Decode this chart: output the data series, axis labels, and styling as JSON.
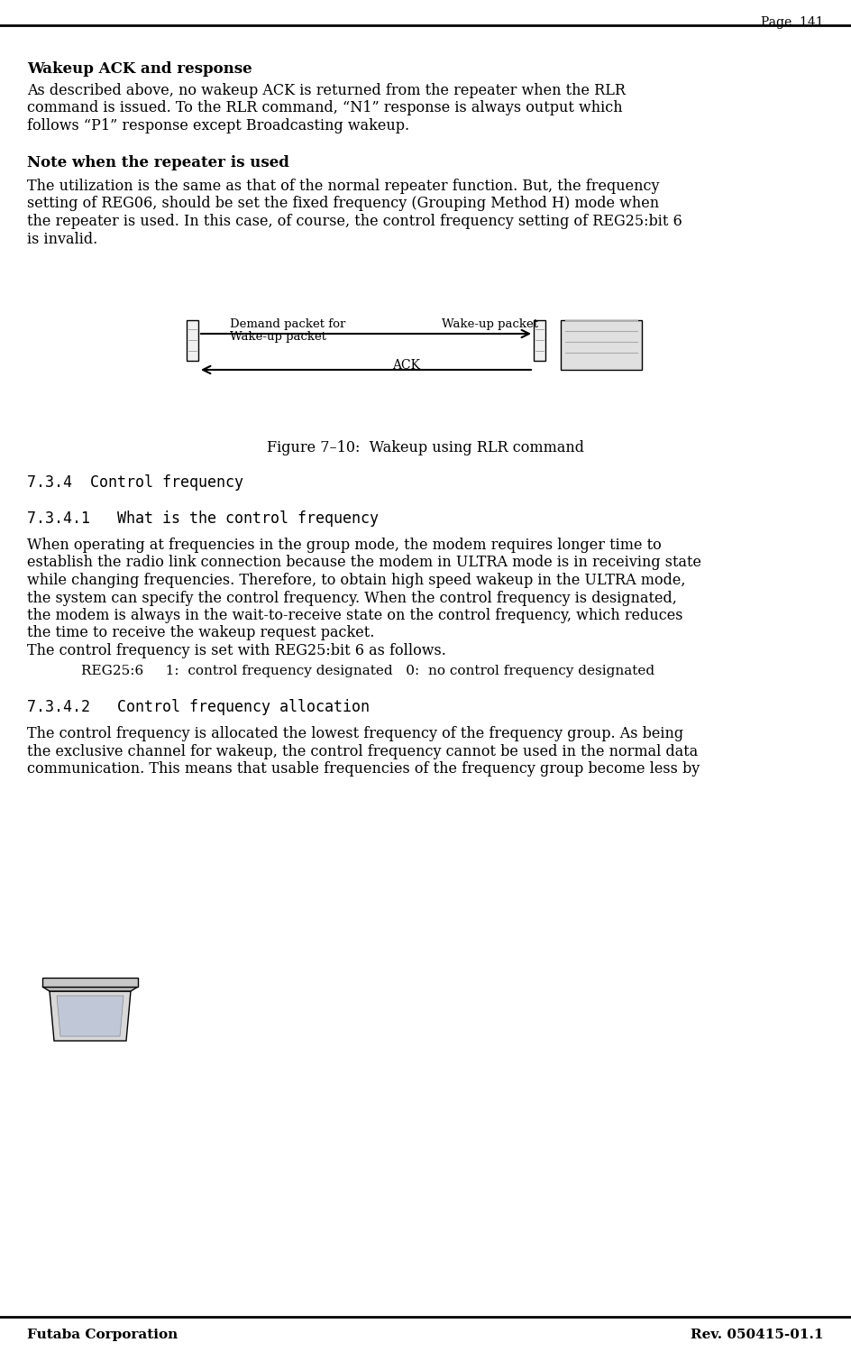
{
  "page_header": "Page  141",
  "footer_left": "Futaba Corporation",
  "footer_right": "Rev. 050415-01.1",
  "section_title": "Wakeup ACK and response",
  "note_title": "Note when the repeater is used",
  "figure_caption": "Figure 7–10:  Wakeup using RLR command",
  "section_7_3_4": "7.3.4  Control frequency",
  "section_7_3_4_1": "7.3.4.1   What is the control frequency",
  "section_7_3_4_2": "7.3.4.2   Control frequency allocation",
  "bg_color": "#ffffff",
  "text_color": "#000000",
  "para1_lines": [
    "As described above, no wakeup ACK is returned from the repeater when the RLR",
    "command is issued. To the RLR command, “N1” response is always output which",
    "follows “P1” response except Broadcasting wakeup."
  ],
  "note_lines": [
    "The utilization is the same as that of the normal repeater function. But, the frequency",
    "setting of REG06, should be set the fixed frequency (Grouping Method H) mode when",
    "the repeater is used. In this case, of course, the control frequency setting of REG25:bit 6",
    "is invalid."
  ],
  "para7341_lines": [
    "When operating at frequencies in the group mode, the modem requires longer time to",
    "establish the radio link connection because the modem in ULTRA mode is in receiving state",
    "while changing frequencies. Therefore, to obtain high speed wakeup in the ULTRA mode,",
    "the system can specify the control frequency. When the control frequency is designated,",
    "the modem is always in the wait-to-receive state on the control frequency, which reduces",
    "the time to receive the wakeup request packet.",
    "The control frequency is set with REG25:bit 6 as follows."
  ],
  "reg_line": "REG25:6     1:  control frequency designated   0:  no control frequency designated",
  "para7342_lines": [
    "The control frequency is allocated the lowest frequency of the frequency group. As being",
    "the exclusive channel for wakeup, the control frequency cannot be used in the normal data",
    "communication. This means that usable frequencies of the frequency group become less by"
  ],
  "label_demand": "Demand packet for",
  "label_demand2": "Wake-up packet",
  "label_wakeup": "Wake-up packet",
  "label_ack": "ACK"
}
